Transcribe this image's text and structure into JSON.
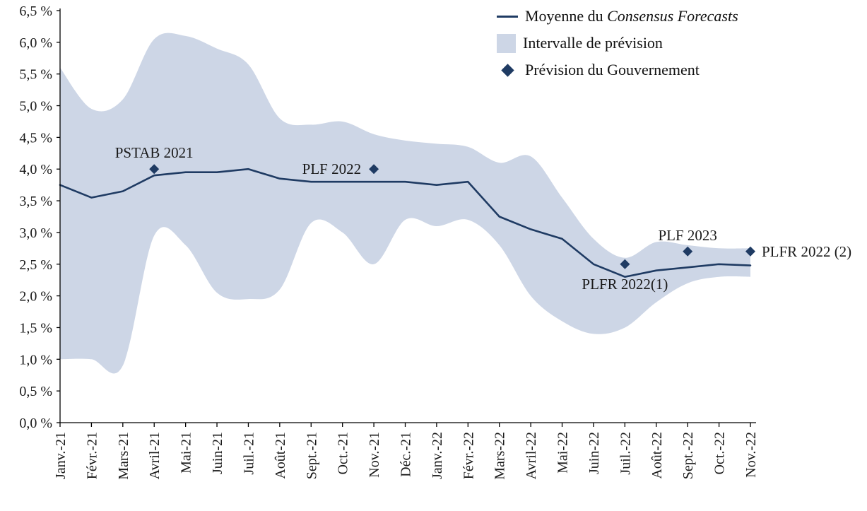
{
  "chart_data": {
    "type": "line",
    "title": "",
    "xlabel": "",
    "ylabel": "",
    "y_unit": "%",
    "ylim": [
      0,
      6.5
    ],
    "y_tick_step": 0.5,
    "y_tick_labels": [
      "0,0 %",
      "0,5 %",
      "1,0 %",
      "1,5 %",
      "2,0 %",
      "2,5 %",
      "3,0 %",
      "3,5 %",
      "4,0 %",
      "4,5 %",
      "5,0 %",
      "5,5 %",
      "6,0 %",
      "6,5 %"
    ],
    "categories": [
      "Janv.-21",
      "Févr.-21",
      "Mars-21",
      "Avril-21",
      "Mai-21",
      "Juin-21",
      "Juil.-21",
      "Août-21",
      "Sept.-21",
      "Oct.-21",
      "Nov.-21",
      "Déc.-21",
      "Janv.-22",
      "Févr.-22",
      "Mars-22",
      "Avril-22",
      "Mai-22",
      "Juin-22",
      "Juil.-22",
      "Août-22",
      "Sept.-22",
      "Oct.-22",
      "Nov.-22"
    ],
    "grid": false,
    "legend_position": "top-right",
    "series": [
      {
        "name": "Moyenne du Consensus Forecasts",
        "type": "line",
        "values": [
          3.75,
          3.55,
          3.65,
          3.9,
          3.95,
          3.95,
          4.0,
          3.85,
          3.8,
          3.8,
          3.8,
          3.8,
          3.75,
          3.8,
          3.25,
          3.05,
          2.9,
          2.5,
          2.3,
          2.4,
          2.45,
          2.5,
          2.48
        ]
      },
      {
        "name": "Intervalle de prévision",
        "type": "band",
        "upper": [
          5.6,
          4.95,
          5.1,
          6.05,
          6.1,
          5.9,
          5.65,
          4.8,
          4.7,
          4.75,
          4.55,
          4.45,
          4.4,
          4.35,
          4.1,
          4.2,
          3.55,
          2.9,
          2.6,
          2.85,
          2.8,
          2.75,
          2.75
        ],
        "lower": [
          1.0,
          1.0,
          0.9,
          2.95,
          2.8,
          2.05,
          1.95,
          2.1,
          3.15,
          3.0,
          2.5,
          3.2,
          3.1,
          3.2,
          2.8,
          2.0,
          1.6,
          1.4,
          1.5,
          1.9,
          2.2,
          2.3,
          2.3
        ]
      },
      {
        "name": "Prévision du Gouvernement",
        "type": "points",
        "points": [
          {
            "label": "PSTAB 2021",
            "category": "Avril-21",
            "value": 4.0,
            "label_position": "above"
          },
          {
            "label": "PLF 2022",
            "category": "Nov.-21",
            "value": 4.0,
            "label_position": "left"
          },
          {
            "label": "PLFR 2022(1)",
            "category": "Juil.-22",
            "value": 2.5,
            "label_position": "below"
          },
          {
            "label": "PLF 2023",
            "category": "Sept.-22",
            "value": 2.7,
            "label_position": "above"
          },
          {
            "label": "PLFR 2022 (2)",
            "category": "Nov.-22",
            "value": 2.7,
            "label_position": "right"
          }
        ]
      }
    ],
    "legend": [
      {
        "swatch": "line",
        "label_prefix": "Moyenne du ",
        "label_italic": "Consensus Forecasts"
      },
      {
        "swatch": "band",
        "label": "Intervalle de prévision"
      },
      {
        "swatch": "diamond",
        "label": "Prévision du Gouvernement"
      }
    ],
    "colors": {
      "line": "#1f3b63",
      "band": "#cdd6e6",
      "point": "#1f3b63",
      "axis": "#000000"
    }
  }
}
